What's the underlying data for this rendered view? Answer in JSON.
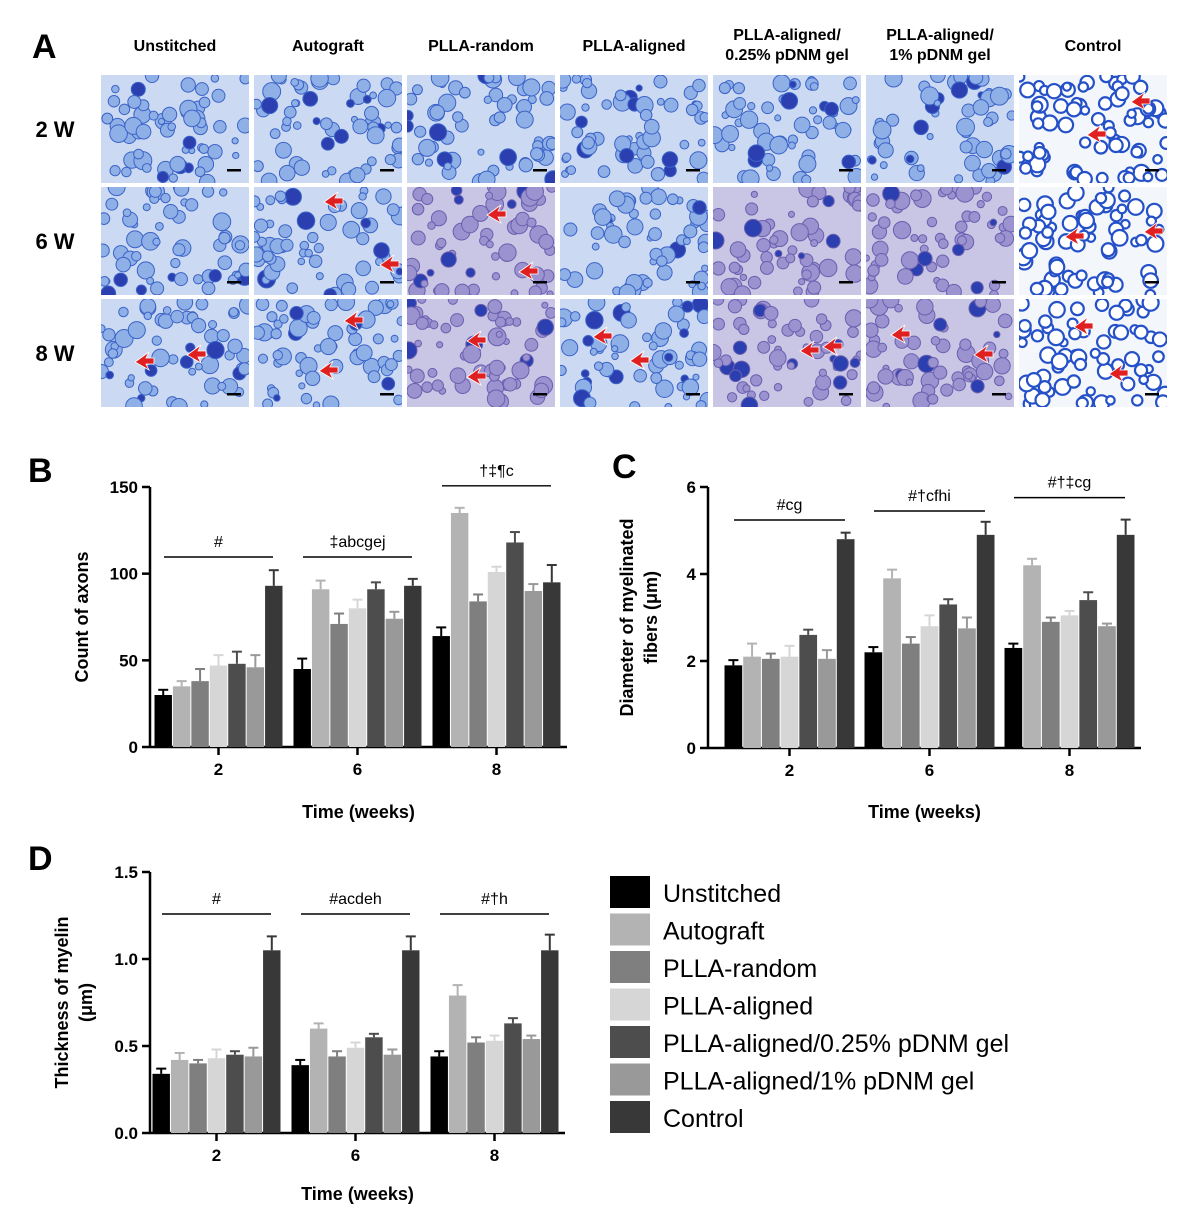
{
  "panels": {
    "A": {
      "letter": "A",
      "columns": [
        "Unstitched",
        "Autograft",
        "PLLA-random",
        "PLLA-aligned",
        "PLLA-aligned/\n0.25% pDNM gel",
        "PLLA-aligned/\n1% pDNM gel",
        "Control"
      ],
      "rows": [
        "2 W",
        "6 W",
        "8 W"
      ],
      "image_description_colors": {
        "stain": "#3a66c8",
        "background": "#dbe6f6",
        "arrow": "#e02020"
      }
    },
    "B": {
      "letter": "B"
    },
    "C": {
      "letter": "C"
    },
    "D": {
      "letter": "D"
    }
  },
  "legend": {
    "items": [
      {
        "label": "Unstitched",
        "color": "#000000"
      },
      {
        "label": "Autograft",
        "color": "#b3b3b3"
      },
      {
        "label": "PLLA-random",
        "color": "#7f7f7f"
      },
      {
        "label": "PLLA-aligned",
        "color": "#d6d6d6"
      },
      {
        "label": "PLLA-aligned/0.25% pDNM gel",
        "color": "#4d4d4d"
      },
      {
        "label": "PLLA-aligned/1% pDNM gel",
        "color": "#999999"
      },
      {
        "label": "Control",
        "color": "#383838"
      }
    ]
  },
  "chart_data": [
    {
      "panel": "B",
      "type": "bar",
      "categories": [
        "2",
        "6",
        "8"
      ],
      "xlabel": "Time (weeks)",
      "ylabel": "Count of axons",
      "ylim": [
        0,
        150
      ],
      "yticks": [
        "0",
        "50",
        "100",
        "150"
      ],
      "series": [
        {
          "name": "Unstitched",
          "values": [
            30,
            45,
            64
          ],
          "errors": [
            3,
            6,
            5
          ]
        },
        {
          "name": "Autograft",
          "values": [
            35,
            91,
            135
          ],
          "errors": [
            3,
            5,
            3
          ]
        },
        {
          "name": "PLLA-random",
          "values": [
            38,
            71,
            84
          ],
          "errors": [
            7,
            6,
            4
          ]
        },
        {
          "name": "PLLA-aligned",
          "values": [
            47,
            80,
            101
          ],
          "errors": [
            6,
            5,
            3
          ]
        },
        {
          "name": "PLLA-aligned/0.25% pDNM gel",
          "values": [
            48,
            91,
            118
          ],
          "errors": [
            7,
            4,
            6
          ]
        },
        {
          "name": "PLLA-aligned/1% pDNM gel",
          "values": [
            46,
            74,
            90
          ],
          "errors": [
            7,
            4,
            4
          ]
        },
        {
          "name": "Control",
          "values": [
            93,
            93,
            95
          ],
          "errors": [
            9,
            4,
            10
          ]
        }
      ],
      "annotations": [
        {
          "group": 0,
          "text": "#"
        },
        {
          "group": 1,
          "text": "‡abcgej"
        },
        {
          "group": 2,
          "text": "†‡¶c"
        }
      ]
    },
    {
      "panel": "C",
      "type": "bar",
      "categories": [
        "2",
        "6",
        "8"
      ],
      "xlabel": "Time (weeks)",
      "ylabel": "Diameter of myelinated\nfibers (μm)",
      "ylim": [
        0,
        6
      ],
      "yticks": [
        "0",
        "2",
        "4",
        "6"
      ],
      "series": [
        {
          "name": "Unstitched",
          "values": [
            1.9,
            2.2,
            2.3
          ],
          "errors": [
            0.12,
            0.12,
            0.1
          ]
        },
        {
          "name": "Autograft",
          "values": [
            2.1,
            3.9,
            4.2
          ],
          "errors": [
            0.3,
            0.2,
            0.15
          ]
        },
        {
          "name": "PLLA-random",
          "values": [
            2.05,
            2.4,
            2.9
          ],
          "errors": [
            0.12,
            0.15,
            0.1
          ]
        },
        {
          "name": "PLLA-aligned",
          "values": [
            2.1,
            2.8,
            3.05
          ],
          "errors": [
            0.25,
            0.25,
            0.1
          ]
        },
        {
          "name": "PLLA-aligned/0.25% pDNM gel",
          "values": [
            2.6,
            3.3,
            3.4
          ],
          "errors": [
            0.12,
            0.12,
            0.18
          ]
        },
        {
          "name": "PLLA-aligned/1% pDNM gel",
          "values": [
            2.05,
            2.75,
            2.8
          ],
          "errors": [
            0.2,
            0.25,
            0.06
          ]
        },
        {
          "name": "Control",
          "values": [
            4.8,
            4.9,
            4.9
          ],
          "errors": [
            0.15,
            0.3,
            0.35
          ]
        }
      ],
      "annotations": [
        {
          "group": 0,
          "text": "#cg"
        },
        {
          "group": 1,
          "text": "#†cfhi"
        },
        {
          "group": 2,
          "text": "#†‡cg"
        }
      ]
    },
    {
      "panel": "D",
      "type": "bar",
      "categories": [
        "2",
        "6",
        "8"
      ],
      "xlabel": "Time (weeks)",
      "ylabel": "Thickness of myelin\n(μm)",
      "ylim": [
        0,
        1.5
      ],
      "yticks": [
        "0.0",
        "0.5",
        "1.0",
        "1.5"
      ],
      "series": [
        {
          "name": "Unstitched",
          "values": [
            0.34,
            0.39,
            0.44
          ],
          "errors": [
            0.03,
            0.03,
            0.03
          ]
        },
        {
          "name": "Autograft",
          "values": [
            0.42,
            0.6,
            0.79
          ],
          "errors": [
            0.04,
            0.03,
            0.06
          ]
        },
        {
          "name": "PLLA-random",
          "values": [
            0.4,
            0.44,
            0.52
          ],
          "errors": [
            0.02,
            0.03,
            0.03
          ]
        },
        {
          "name": "PLLA-aligned",
          "values": [
            0.43,
            0.49,
            0.53
          ],
          "errors": [
            0.05,
            0.03,
            0.03
          ]
        },
        {
          "name": "PLLA-aligned/0.25% pDNM gel",
          "values": [
            0.45,
            0.55,
            0.63
          ],
          "errors": [
            0.02,
            0.02,
            0.03
          ]
        },
        {
          "name": "PLLA-aligned/1% pDNM gel",
          "values": [
            0.44,
            0.45,
            0.54
          ],
          "errors": [
            0.05,
            0.03,
            0.02
          ]
        },
        {
          "name": "Control",
          "values": [
            1.05,
            1.05,
            1.05
          ],
          "errors": [
            0.08,
            0.08,
            0.09
          ]
        }
      ],
      "annotations": [
        {
          "group": 0,
          "text": "#"
        },
        {
          "group": 1,
          "text": "#acdeh"
        },
        {
          "group": 2,
          "text": "#†h"
        }
      ]
    }
  ]
}
